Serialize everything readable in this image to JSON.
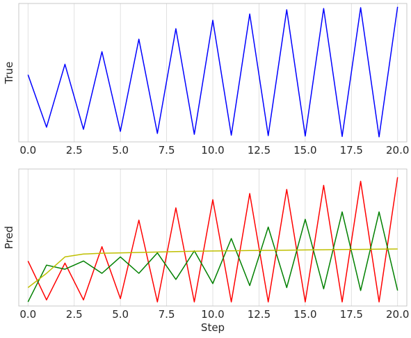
{
  "chart_data": [
    {
      "type": "line",
      "ylabel": "True",
      "xlabel": "",
      "xlim": [
        -0.5,
        20.5
      ],
      "ylim": [
        -1.1,
        2.2
      ],
      "x_ticks": [
        0.0,
        2.5,
        5.0,
        7.5,
        10.0,
        12.5,
        15.0,
        17.5,
        20.0
      ],
      "x_tick_labels": [
        "0.0",
        "2.5",
        "5.0",
        "7.5",
        "10.0",
        "12.5",
        "15.0",
        "17.5",
        "20.0"
      ],
      "y_ticks_shown": false,
      "grid": "vertical",
      "series": [
        {
          "color": "#0000ff",
          "x": [
            0,
            1,
            2,
            3,
            4,
            5,
            6,
            7,
            8,
            9,
            10,
            11,
            12,
            13,
            14,
            15,
            16,
            17,
            18,
            19,
            20
          ],
          "y": [
            0.5,
            -0.75,
            0.75,
            -0.8,
            1.05,
            -0.85,
            1.35,
            -0.9,
            1.6,
            -0.92,
            1.8,
            -0.94,
            1.95,
            -0.95,
            2.05,
            -0.96,
            2.08,
            -0.97,
            2.1,
            -0.98,
            2.12
          ]
        }
      ]
    },
    {
      "type": "line",
      "ylabel": "Pred",
      "xlabel": "Step",
      "xlim": [
        -0.5,
        20.5
      ],
      "ylim": [
        -1.1,
        2.25
      ],
      "x_ticks": [
        0.0,
        2.5,
        5.0,
        7.5,
        10.0,
        12.5,
        15.0,
        17.5,
        20.0
      ],
      "x_tick_labels": [
        "0.0",
        "2.5",
        "5.0",
        "7.5",
        "10.0",
        "12.5",
        "15.0",
        "17.5",
        "20.0"
      ],
      "y_ticks_shown": false,
      "grid": "vertical",
      "series": [
        {
          "color": "#ff0000",
          "x": [
            0,
            1,
            2,
            3,
            4,
            5,
            6,
            7,
            8,
            9,
            10,
            11,
            12,
            13,
            14,
            15,
            16,
            17,
            18,
            19,
            20
          ],
          "y": [
            0.0,
            -0.95,
            -0.05,
            -0.95,
            0.35,
            -0.92,
            1.0,
            -1.0,
            1.3,
            -1.0,
            1.5,
            -1.0,
            1.65,
            -1.0,
            1.75,
            -1.0,
            1.85,
            -1.0,
            1.95,
            -1.0,
            2.05
          ]
        },
        {
          "color": "#008000",
          "x": [
            0,
            1,
            2,
            3,
            4,
            5,
            6,
            7,
            8,
            9,
            10,
            11,
            12,
            13,
            14,
            15,
            16,
            17,
            18,
            19,
            20
          ],
          "y": [
            -1.0,
            -0.1,
            -0.2,
            0.0,
            -0.3,
            0.1,
            -0.3,
            0.2,
            -0.45,
            0.25,
            -0.55,
            0.55,
            -0.6,
            0.83,
            -0.65,
            1.02,
            -0.68,
            1.2,
            -0.72,
            1.2,
            -0.72
          ]
        },
        {
          "color": "#bfbf00",
          "x": [
            0,
            1,
            2,
            3,
            4,
            5,
            6,
            7,
            8,
            9,
            10,
            11,
            12,
            13,
            14,
            15,
            16,
            17,
            18,
            19,
            20
          ],
          "y": [
            -0.65,
            -0.3,
            0.1,
            0.17,
            0.19,
            0.2,
            0.21,
            0.22,
            0.23,
            0.24,
            0.245,
            0.25,
            0.255,
            0.26,
            0.265,
            0.27,
            0.275,
            0.28,
            0.285,
            0.29,
            0.295
          ]
        }
      ]
    }
  ]
}
